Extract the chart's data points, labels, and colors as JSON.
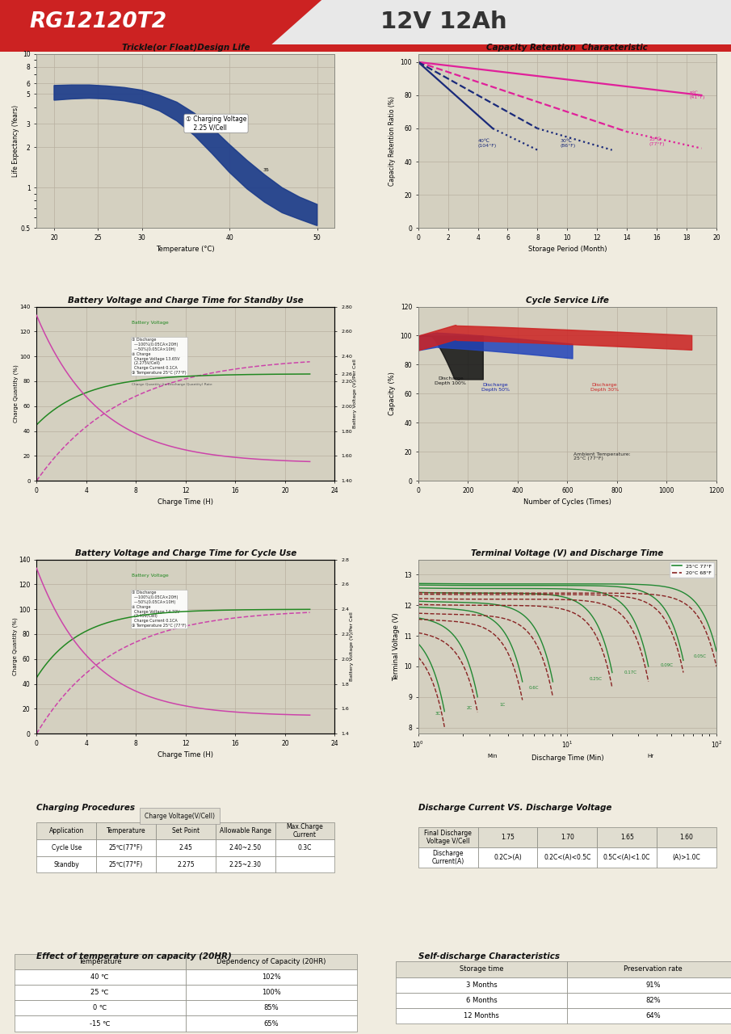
{
  "header_model": "RG12120T2",
  "header_voltage": "12V 12Ah",
  "bg_color": "#f0ece0",
  "plot_bg": "#d4d0c0",
  "grid_color": "#b8b0a0",
  "trickle_title": "Trickle(or Float)Design Life",
  "trickle_xlabel": "Temperature (°C)",
  "trickle_ylabel": "Life Expectancy (Years)",
  "trickle_annotation": "① Charging Voltage\n    2.25 V/Cell",
  "trickle_upper_x": [
    20,
    22,
    24,
    26,
    28,
    30,
    32,
    34,
    36,
    38,
    40,
    42,
    44,
    46,
    48,
    50
  ],
  "trickle_upper_y": [
    5.8,
    5.85,
    5.85,
    5.75,
    5.6,
    5.35,
    4.9,
    4.35,
    3.6,
    2.8,
    2.1,
    1.6,
    1.25,
    1.0,
    0.85,
    0.75
  ],
  "trickle_lower_x": [
    20,
    22,
    24,
    26,
    28,
    30,
    32,
    34,
    36,
    38,
    40,
    42,
    44,
    46,
    48,
    50
  ],
  "trickle_lower_y": [
    4.5,
    4.6,
    4.65,
    4.6,
    4.45,
    4.2,
    3.75,
    3.15,
    2.45,
    1.8,
    1.3,
    0.98,
    0.78,
    0.65,
    0.58,
    0.52
  ],
  "trickle_color": "#1a3a8a",
  "capacity_title": "Capacity Retention  Characteristic",
  "capacity_xlabel": "Storage Period (Month)",
  "capacity_ylabel": "Capacity Retention Ratio (%)",
  "cap_pink_color": "#e0209a",
  "cap_blue_color": "#1a2a7a",
  "bv_standby_title": "Battery Voltage and Charge Time for Standby Use",
  "bv_cycle_title": "Battery Voltage and Charge Time for Cycle Use",
  "cycle_service_title": "Cycle Service Life",
  "terminal_title": "Terminal Voltage (V) and Discharge Time",
  "charging_title": "Charging Procedures",
  "discharge_vs_title": "Discharge Current VS. Discharge Voltage",
  "temp_effect_title": "Effect of temperature on capacity (20HR)",
  "selfdischarge_title": "Self-discharge Characteristics"
}
